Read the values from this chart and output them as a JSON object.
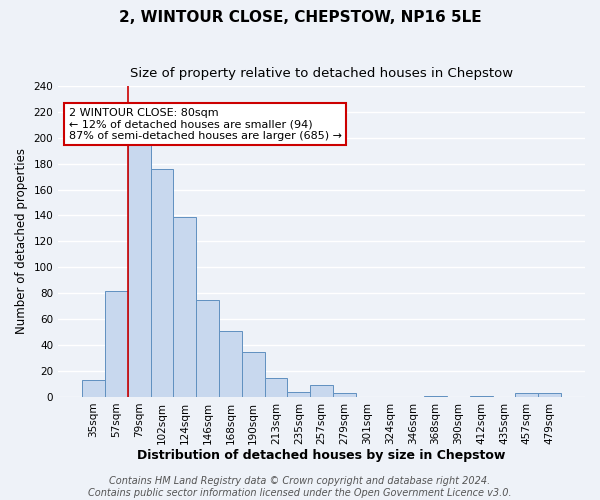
{
  "title": "2, WINTOUR CLOSE, CHEPSTOW, NP16 5LE",
  "subtitle": "Size of property relative to detached houses in Chepstow",
  "xlabel": "Distribution of detached houses by size in Chepstow",
  "ylabel": "Number of detached properties",
  "bar_labels": [
    "35sqm",
    "57sqm",
    "79sqm",
    "102sqm",
    "124sqm",
    "146sqm",
    "168sqm",
    "190sqm",
    "213sqm",
    "235sqm",
    "257sqm",
    "279sqm",
    "301sqm",
    "324sqm",
    "346sqm",
    "368sqm",
    "390sqm",
    "412sqm",
    "435sqm",
    "457sqm",
    "479sqm"
  ],
  "bar_heights": [
    13,
    82,
    194,
    176,
    139,
    75,
    51,
    35,
    15,
    4,
    9,
    3,
    0,
    0,
    0,
    1,
    0,
    1,
    0,
    3,
    3
  ],
  "bar_color": "#c8d8ee",
  "bar_edge_color": "#6090c0",
  "vline_color": "#cc0000",
  "vline_index": 2,
  "annotation_text": "2 WINTOUR CLOSE: 80sqm\n← 12% of detached houses are smaller (94)\n87% of semi-detached houses are larger (685) →",
  "annotation_box_color": "white",
  "annotation_box_edge_color": "#cc0000",
  "ylim": [
    0,
    240
  ],
  "yticks": [
    0,
    20,
    40,
    60,
    80,
    100,
    120,
    140,
    160,
    180,
    200,
    220,
    240
  ],
  "footer_line1": "Contains HM Land Registry data © Crown copyright and database right 2024.",
  "footer_line2": "Contains public sector information licensed under the Open Government Licence v3.0.",
  "background_color": "#eef2f8",
  "grid_color": "white",
  "title_fontsize": 11,
  "subtitle_fontsize": 9.5,
  "xlabel_fontsize": 9,
  "ylabel_fontsize": 8.5,
  "tick_fontsize": 7.5,
  "annotation_fontsize": 8,
  "footer_fontsize": 7
}
